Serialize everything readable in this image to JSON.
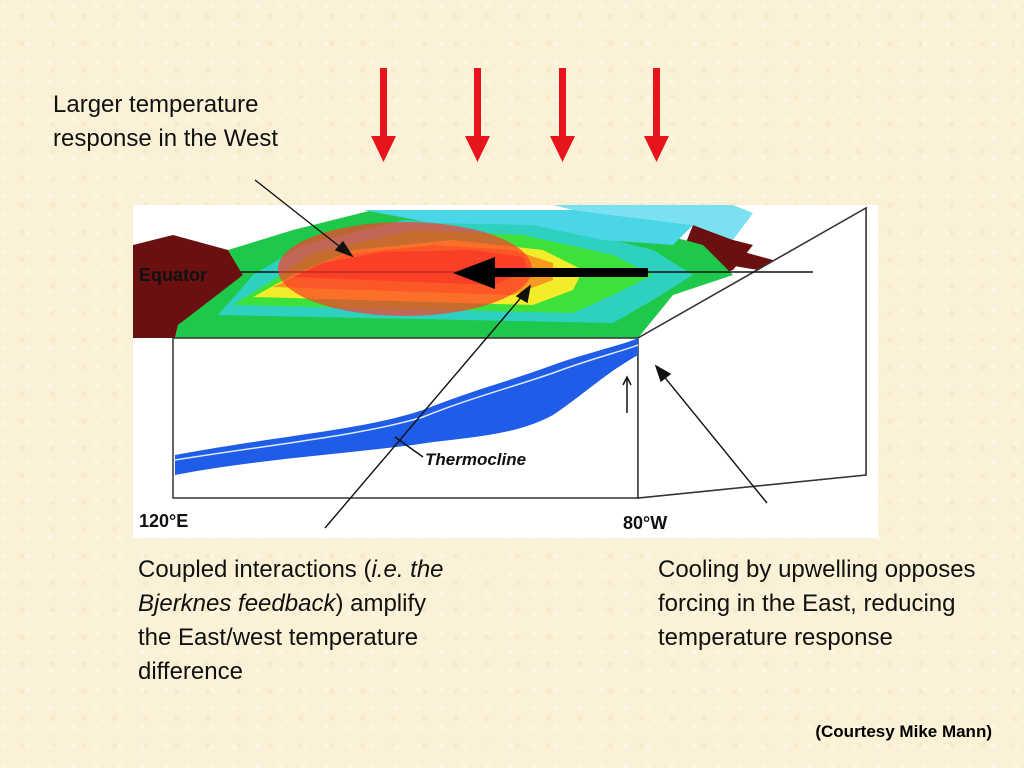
{
  "annotations": {
    "west": "Larger temperature response in the West",
    "coupled_prefix": "Coupled interactions (",
    "coupled_italic": "i.e. the Bjerknes feedback",
    "coupled_suffix": ") amplify the East/west temperature difference",
    "cooling": "Cooling by upwelling opposes forcing in the East, reducing temperature response",
    "courtesy": "(Courtesy Mike Mann)"
  },
  "figure": {
    "equator_label": "Equator",
    "thermocline_label": "Thermocline",
    "west_lon_label": "120°E",
    "east_lon_label": "80°W",
    "forcing_arrow_count": 4
  },
  "colors": {
    "forcing_arrow": "#e8141c",
    "warm_pool_highlight": "#ff3b2a",
    "deep_water": "#1f5ce8",
    "land": "#6b1010",
    "background": "#fbf1d6"
  }
}
